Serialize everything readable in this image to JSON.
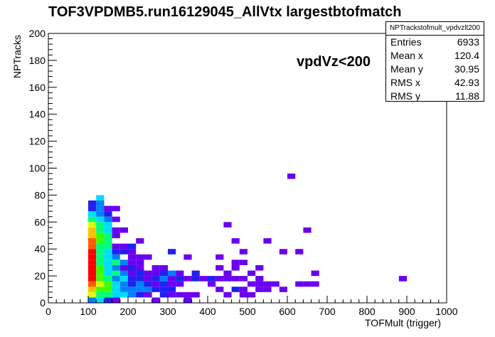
{
  "title": "TOF3VPDMB5.run16129045_AllVtx largestbtofmatch",
  "annotation": "vpdVz<200",
  "stats": {
    "name": "NPTrackstofmult_vpdvzlt200",
    "rows": [
      {
        "key": "Entries",
        "value": "6933"
      },
      {
        "key": "Mean x",
        "value": "120.4"
      },
      {
        "key": "Mean y",
        "value": "30.95"
      },
      {
        "key": "RMS x",
        "value": "42.93"
      },
      {
        "key": "RMS y",
        "value": "11.88"
      }
    ]
  },
  "chart_data": {
    "type": "heatmap",
    "title": "TOF3VPDMB5.run16129045_AllVtx largestbtofmatch",
    "xlabel": "TOFMult (trigger)",
    "ylabel": "NPTracks",
    "xlim": [
      0,
      1000
    ],
    "ylim": [
      0,
      200
    ],
    "x_ticks": [
      0,
      100,
      200,
      300,
      400,
      500,
      600,
      700,
      800,
      900,
      1000
    ],
    "y_ticks": [
      0,
      20,
      40,
      60,
      80,
      100,
      120,
      140,
      160,
      180,
      200
    ],
    "bin_width_x": 20,
    "bin_width_y": 4,
    "palette": [
      "#6a00f0",
      "#1f1ff0",
      "#0080ff",
      "#00dcff",
      "#00ff7a",
      "#3cff00",
      "#d8ff00",
      "#ffc000",
      "#ff5a00",
      "#ff0000"
    ],
    "cells": [
      [
        100,
        0,
        2
      ],
      [
        100,
        4,
        6
      ],
      [
        100,
        8,
        7
      ],
      [
        100,
        12,
        8
      ],
      [
        100,
        16,
        9
      ],
      [
        100,
        20,
        9
      ],
      [
        100,
        24,
        9
      ],
      [
        100,
        28,
        9
      ],
      [
        100,
        32,
        9
      ],
      [
        100,
        36,
        9
      ],
      [
        100,
        40,
        8
      ],
      [
        100,
        44,
        8
      ],
      [
        100,
        48,
        7
      ],
      [
        100,
        52,
        7
      ],
      [
        100,
        56,
        6
      ],
      [
        100,
        60,
        4
      ],
      [
        100,
        64,
        3
      ],
      [
        100,
        68,
        1
      ],
      [
        100,
        72,
        1
      ],
      [
        120,
        0,
        3
      ],
      [
        120,
        4,
        4
      ],
      [
        120,
        8,
        5
      ],
      [
        120,
        12,
        6
      ],
      [
        120,
        16,
        5
      ],
      [
        120,
        20,
        5
      ],
      [
        120,
        24,
        5
      ],
      [
        120,
        28,
        4
      ],
      [
        120,
        32,
        4
      ],
      [
        120,
        36,
        4
      ],
      [
        120,
        40,
        4
      ],
      [
        120,
        44,
        5
      ],
      [
        120,
        48,
        5
      ],
      [
        120,
        52,
        4
      ],
      [
        120,
        56,
        4
      ],
      [
        120,
        60,
        3
      ],
      [
        120,
        64,
        2
      ],
      [
        120,
        68,
        2
      ],
      [
        120,
        72,
        2
      ],
      [
        120,
        76,
        3
      ],
      [
        140,
        0,
        1
      ],
      [
        140,
        4,
        4
      ],
      [
        140,
        8,
        5
      ],
      [
        140,
        12,
        5
      ],
      [
        140,
        16,
        4
      ],
      [
        140,
        20,
        3
      ],
      [
        140,
        24,
        3
      ],
      [
        140,
        28,
        3
      ],
      [
        140,
        32,
        3
      ],
      [
        140,
        36,
        3
      ],
      [
        140,
        40,
        4
      ],
      [
        140,
        44,
        4
      ],
      [
        140,
        48,
        4
      ],
      [
        140,
        52,
        3
      ],
      [
        140,
        56,
        3
      ],
      [
        140,
        60,
        2
      ],
      [
        140,
        64,
        1
      ],
      [
        140,
        68,
        0
      ],
      [
        160,
        0,
        0
      ],
      [
        160,
        4,
        3
      ],
      [
        160,
        8,
        3
      ],
      [
        160,
        12,
        3
      ],
      [
        160,
        16,
        2
      ],
      [
        160,
        20,
        4
      ],
      [
        160,
        24,
        2
      ],
      [
        160,
        28,
        4
      ],
      [
        160,
        32,
        2
      ],
      [
        160,
        36,
        1
      ],
      [
        160,
        40,
        0
      ],
      [
        160,
        48,
        0
      ],
      [
        160,
        52,
        0
      ],
      [
        160,
        60,
        0
      ],
      [
        160,
        68,
        0
      ],
      [
        180,
        4,
        3
      ],
      [
        180,
        8,
        2
      ],
      [
        180,
        12,
        2
      ],
      [
        180,
        16,
        3
      ],
      [
        180,
        20,
        2
      ],
      [
        180,
        24,
        0
      ],
      [
        180,
        28,
        2
      ],
      [
        180,
        36,
        1
      ],
      [
        180,
        40,
        0
      ],
      [
        180,
        52,
        0
      ],
      [
        200,
        4,
        2
      ],
      [
        200,
        8,
        2
      ],
      [
        200,
        12,
        1
      ],
      [
        200,
        16,
        1
      ],
      [
        200,
        20,
        0
      ],
      [
        200,
        24,
        1
      ],
      [
        200,
        28,
        0
      ],
      [
        200,
        32,
        0
      ],
      [
        200,
        36,
        0
      ],
      [
        200,
        40,
        1
      ],
      [
        220,
        4,
        1
      ],
      [
        220,
        8,
        2
      ],
      [
        220,
        12,
        2
      ],
      [
        220,
        16,
        1
      ],
      [
        220,
        20,
        1
      ],
      [
        220,
        24,
        0
      ],
      [
        220,
        28,
        0
      ],
      [
        220,
        32,
        0
      ],
      [
        220,
        44,
        0
      ],
      [
        240,
        4,
        0
      ],
      [
        240,
        8,
        2
      ],
      [
        240,
        12,
        1
      ],
      [
        240,
        16,
        0
      ],
      [
        240,
        20,
        0
      ],
      [
        240,
        32,
        0
      ],
      [
        260,
        0,
        0
      ],
      [
        260,
        8,
        1
      ],
      [
        260,
        12,
        0
      ],
      [
        260,
        16,
        1
      ],
      [
        260,
        20,
        0
      ],
      [
        260,
        24,
        0
      ],
      [
        280,
        4,
        1
      ],
      [
        280,
        8,
        1
      ],
      [
        280,
        12,
        1
      ],
      [
        280,
        16,
        2
      ],
      [
        280,
        20,
        1
      ],
      [
        280,
        24,
        0
      ],
      [
        300,
        4,
        0
      ],
      [
        300,
        8,
        1
      ],
      [
        300,
        12,
        0
      ],
      [
        300,
        16,
        0
      ],
      [
        300,
        20,
        2
      ],
      [
        300,
        36,
        1
      ],
      [
        320,
        4,
        0
      ],
      [
        320,
        12,
        0
      ],
      [
        320,
        16,
        1
      ],
      [
        320,
        20,
        0
      ],
      [
        340,
        0,
        0
      ],
      [
        340,
        4,
        0
      ],
      [
        340,
        16,
        0
      ],
      [
        340,
        32,
        0
      ],
      [
        360,
        4,
        0
      ],
      [
        360,
        16,
        1
      ],
      [
        360,
        20,
        1
      ],
      [
        380,
        16,
        0
      ],
      [
        400,
        12,
        0
      ],
      [
        400,
        16,
        1
      ],
      [
        420,
        8,
        0
      ],
      [
        420,
        16,
        0
      ],
      [
        420,
        24,
        0
      ],
      [
        420,
        32,
        0
      ],
      [
        440,
        4,
        0
      ],
      [
        440,
        16,
        0
      ],
      [
        440,
        20,
        0
      ],
      [
        440,
        56,
        0
      ],
      [
        460,
        8,
        1
      ],
      [
        460,
        16,
        0
      ],
      [
        460,
        24,
        0
      ],
      [
        460,
        28,
        0
      ],
      [
        460,
        44,
        0
      ],
      [
        480,
        4,
        0
      ],
      [
        480,
        8,
        0
      ],
      [
        480,
        16,
        0
      ],
      [
        480,
        28,
        0
      ],
      [
        480,
        36,
        0
      ],
      [
        500,
        4,
        0
      ],
      [
        500,
        12,
        0
      ],
      [
        500,
        20,
        0
      ],
      [
        520,
        8,
        0
      ],
      [
        520,
        12,
        0
      ],
      [
        520,
        16,
        0
      ],
      [
        520,
        24,
        0
      ],
      [
        540,
        8,
        0
      ],
      [
        540,
        12,
        0
      ],
      [
        540,
        44,
        0
      ],
      [
        560,
        12,
        0
      ],
      [
        580,
        8,
        0
      ],
      [
        580,
        36,
        0
      ],
      [
        600,
        92,
        0
      ],
      [
        620,
        12,
        0
      ],
      [
        620,
        36,
        0
      ],
      [
        640,
        12,
        0
      ],
      [
        640,
        52,
        0
      ],
      [
        660,
        12,
        0
      ],
      [
        660,
        20,
        0
      ],
      [
        880,
        16,
        0
      ]
    ]
  }
}
